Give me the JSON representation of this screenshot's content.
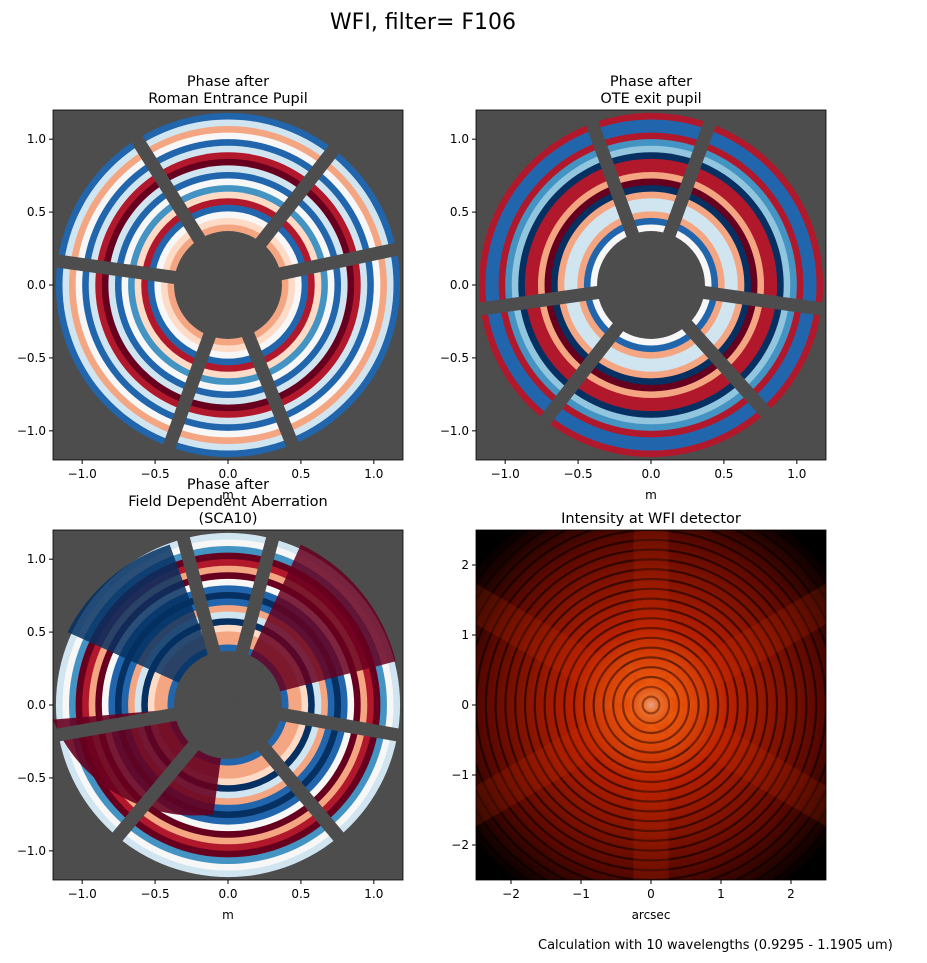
{
  "title": "WFI, filter= F106",
  "footnote": "Calculation with 10 wavelengths (0.9295 - 1.1905 um)",
  "chart_data": [
    {
      "type": "image",
      "title": [
        "Phase after",
        "Roman Entrance Pupil"
      ],
      "xlabel": "m",
      "xlim": [
        -1.2,
        1.2
      ],
      "ylim": [
        -1.2,
        1.2
      ],
      "xticks": [
        {
          "value": -1,
          "label": "−1.0"
        },
        {
          "value": -0.5,
          "label": "−0.5"
        },
        {
          "value": 0,
          "label": "0.0"
        },
        {
          "value": 0.5,
          "label": "0.5"
        },
        {
          "value": 1,
          "label": "1.0"
        }
      ],
      "yticks": [
        {
          "value": -1,
          "label": "−1.0"
        },
        {
          "value": -0.5,
          "label": "−0.5"
        },
        {
          "value": 0,
          "label": "0.0"
        },
        {
          "value": 0.5,
          "label": "0.5"
        },
        {
          "value": 1,
          "label": "1.0"
        }
      ]
    },
    {
      "type": "image",
      "title": [
        "Phase after",
        "OTE exit pupil"
      ],
      "xlabel": "m",
      "xlim": [
        -1.2,
        1.2
      ],
      "ylim": [
        -1.2,
        1.2
      ],
      "xticks": [
        {
          "value": -1,
          "label": "−1.0"
        },
        {
          "value": -0.5,
          "label": "−0.5"
        },
        {
          "value": 0,
          "label": "0.0"
        },
        {
          "value": 0.5,
          "label": "0.5"
        },
        {
          "value": 1,
          "label": "1.0"
        }
      ],
      "yticks": [
        {
          "value": -1,
          "label": "−1.0"
        },
        {
          "value": -0.5,
          "label": "−0.5"
        },
        {
          "value": 0,
          "label": "0.0"
        },
        {
          "value": 0.5,
          "label": "0.5"
        },
        {
          "value": 1,
          "label": "1.0"
        }
      ]
    },
    {
      "type": "image",
      "title": [
        "Phase after",
        "Field Dependent Aberration",
        "(SCA10)"
      ],
      "xlabel": "m",
      "xlim": [
        -1.2,
        1.2
      ],
      "ylim": [
        -1.2,
        1.2
      ],
      "xticks": [
        {
          "value": -1,
          "label": "−1.0"
        },
        {
          "value": -0.5,
          "label": "−0.5"
        },
        {
          "value": 0,
          "label": "0.0"
        },
        {
          "value": 0.5,
          "label": "0.5"
        },
        {
          "value": 1,
          "label": "1.0"
        }
      ],
      "yticks": [
        {
          "value": -1,
          "label": "−1.0"
        },
        {
          "value": -0.5,
          "label": "−0.5"
        },
        {
          "value": 0,
          "label": "0.0"
        },
        {
          "value": 0.5,
          "label": "0.5"
        },
        {
          "value": 1,
          "label": "1.0"
        }
      ]
    },
    {
      "type": "psf",
      "title": [
        "Intensity at WFI detector"
      ],
      "xlabel": "arcsec",
      "xlim": [
        -2.5,
        2.5
      ],
      "ylim": [
        -2.5,
        2.5
      ],
      "xticks": [
        {
          "value": -2,
          "label": "−2"
        },
        {
          "value": -1,
          "label": "−1"
        },
        0,
        1,
        2
      ],
      "yticks": [
        {
          "value": -2,
          "label": "−2"
        },
        {
          "value": -1,
          "label": "−1"
        },
        0,
        1,
        2
      ]
    }
  ]
}
